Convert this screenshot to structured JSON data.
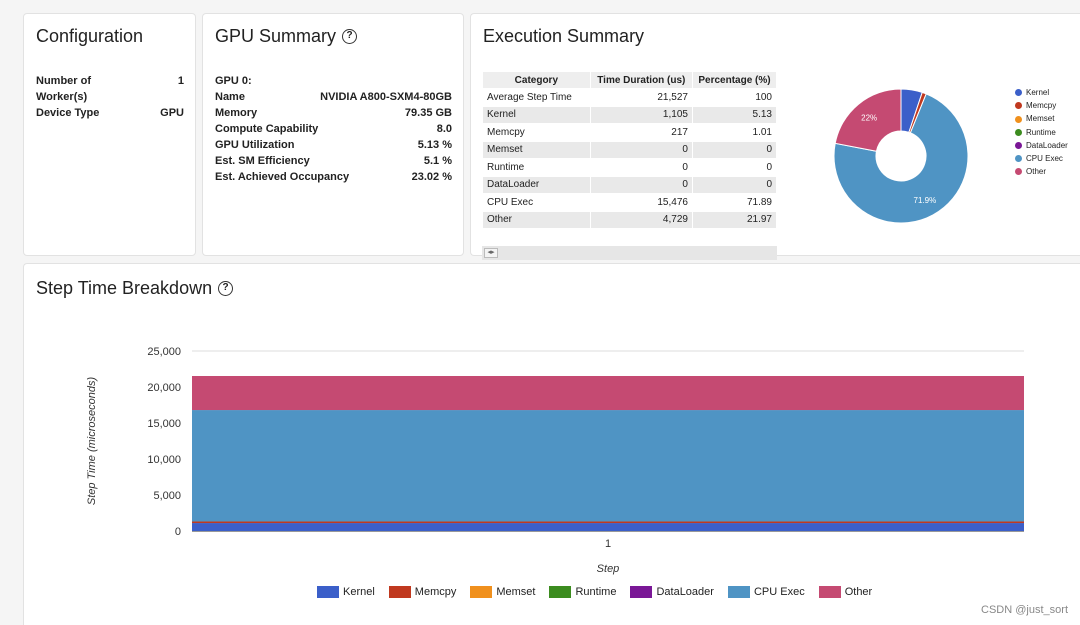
{
  "configuration": {
    "title": "Configuration",
    "rows": [
      {
        "label": "Number of\nWorker(s)",
        "value": "1"
      },
      {
        "label": "Device Type",
        "value": "GPU"
      }
    ]
  },
  "gpu_summary": {
    "title": "GPU Summary",
    "rows": [
      {
        "label": "GPU 0:",
        "value": ""
      },
      {
        "label": "Name",
        "value": "NVIDIA A800-SXM4-80GB"
      },
      {
        "label": "Memory",
        "value": "79.35 GB"
      },
      {
        "label": "Compute Capability",
        "value": "8.0"
      },
      {
        "label": "GPU Utilization",
        "value": "5.13 %"
      },
      {
        "label": "Est. SM Efficiency",
        "value": "5.1 %"
      },
      {
        "label": "Est. Achieved Occupancy",
        "value": "23.02 %"
      }
    ]
  },
  "execution_summary": {
    "title": "Execution Summary",
    "columns": [
      "Category",
      "Time Duration (us)",
      "Percentage (%)"
    ],
    "rows": [
      [
        "Average Step Time",
        "21,527",
        "100"
      ],
      [
        "Kernel",
        "1,105",
        "5.13"
      ],
      [
        "Memcpy",
        "217",
        "1.01"
      ],
      [
        "Memset",
        "0",
        "0"
      ],
      [
        "Runtime",
        "0",
        "0"
      ],
      [
        "DataLoader",
        "0",
        "0"
      ],
      [
        "CPU Exec",
        "15,476",
        "71.89"
      ],
      [
        "Other",
        "4,729",
        "21.97"
      ]
    ],
    "pager_icon": "pager-icon"
  },
  "colors": {
    "Kernel": "#3b5fc9",
    "Memcpy": "#c0391f",
    "Memset": "#f0901d",
    "Runtime": "#3c8c1f",
    "DataLoader": "#7a1796",
    "CPU Exec": "#4f94c4",
    "Other": "#c54a72"
  },
  "step_breakdown": {
    "title": "Step Time Breakdown"
  },
  "chart_data": [
    {
      "type": "pie",
      "labels": [
        "Kernel",
        "Memcpy",
        "Memset",
        "Runtime",
        "DataLoader",
        "CPU Exec",
        "Other"
      ],
      "values": [
        5.13,
        1.01,
        0,
        0,
        0,
        71.89,
        21.97
      ],
      "slice_labels": [
        "",
        "",
        "",
        "",
        "",
        "71.9%",
        "22%"
      ],
      "donut": true,
      "legend": "right"
    },
    {
      "type": "area",
      "title": "",
      "x": [
        1
      ],
      "xlabel": "Step",
      "ylabel": "Step Time (microseconds)",
      "ylim": [
        0,
        25000
      ],
      "yticks": [
        "0",
        "5,000",
        "10,000",
        "15,000",
        "20,000",
        "25,000"
      ],
      "xticks": [
        "1"
      ],
      "stacked": true,
      "series": [
        {
          "name": "Kernel",
          "values": [
            1105
          ]
        },
        {
          "name": "Memcpy",
          "values": [
            217
          ]
        },
        {
          "name": "Memset",
          "values": [
            0
          ]
        },
        {
          "name": "Runtime",
          "values": [
            0
          ]
        },
        {
          "name": "DataLoader",
          "values": [
            0
          ]
        },
        {
          "name": "CPU Exec",
          "values": [
            15476
          ]
        },
        {
          "name": "Other",
          "values": [
            4729
          ]
        }
      ],
      "legend": "bottom",
      "grid": true
    }
  ],
  "watermark": "CSDN @just_sort"
}
